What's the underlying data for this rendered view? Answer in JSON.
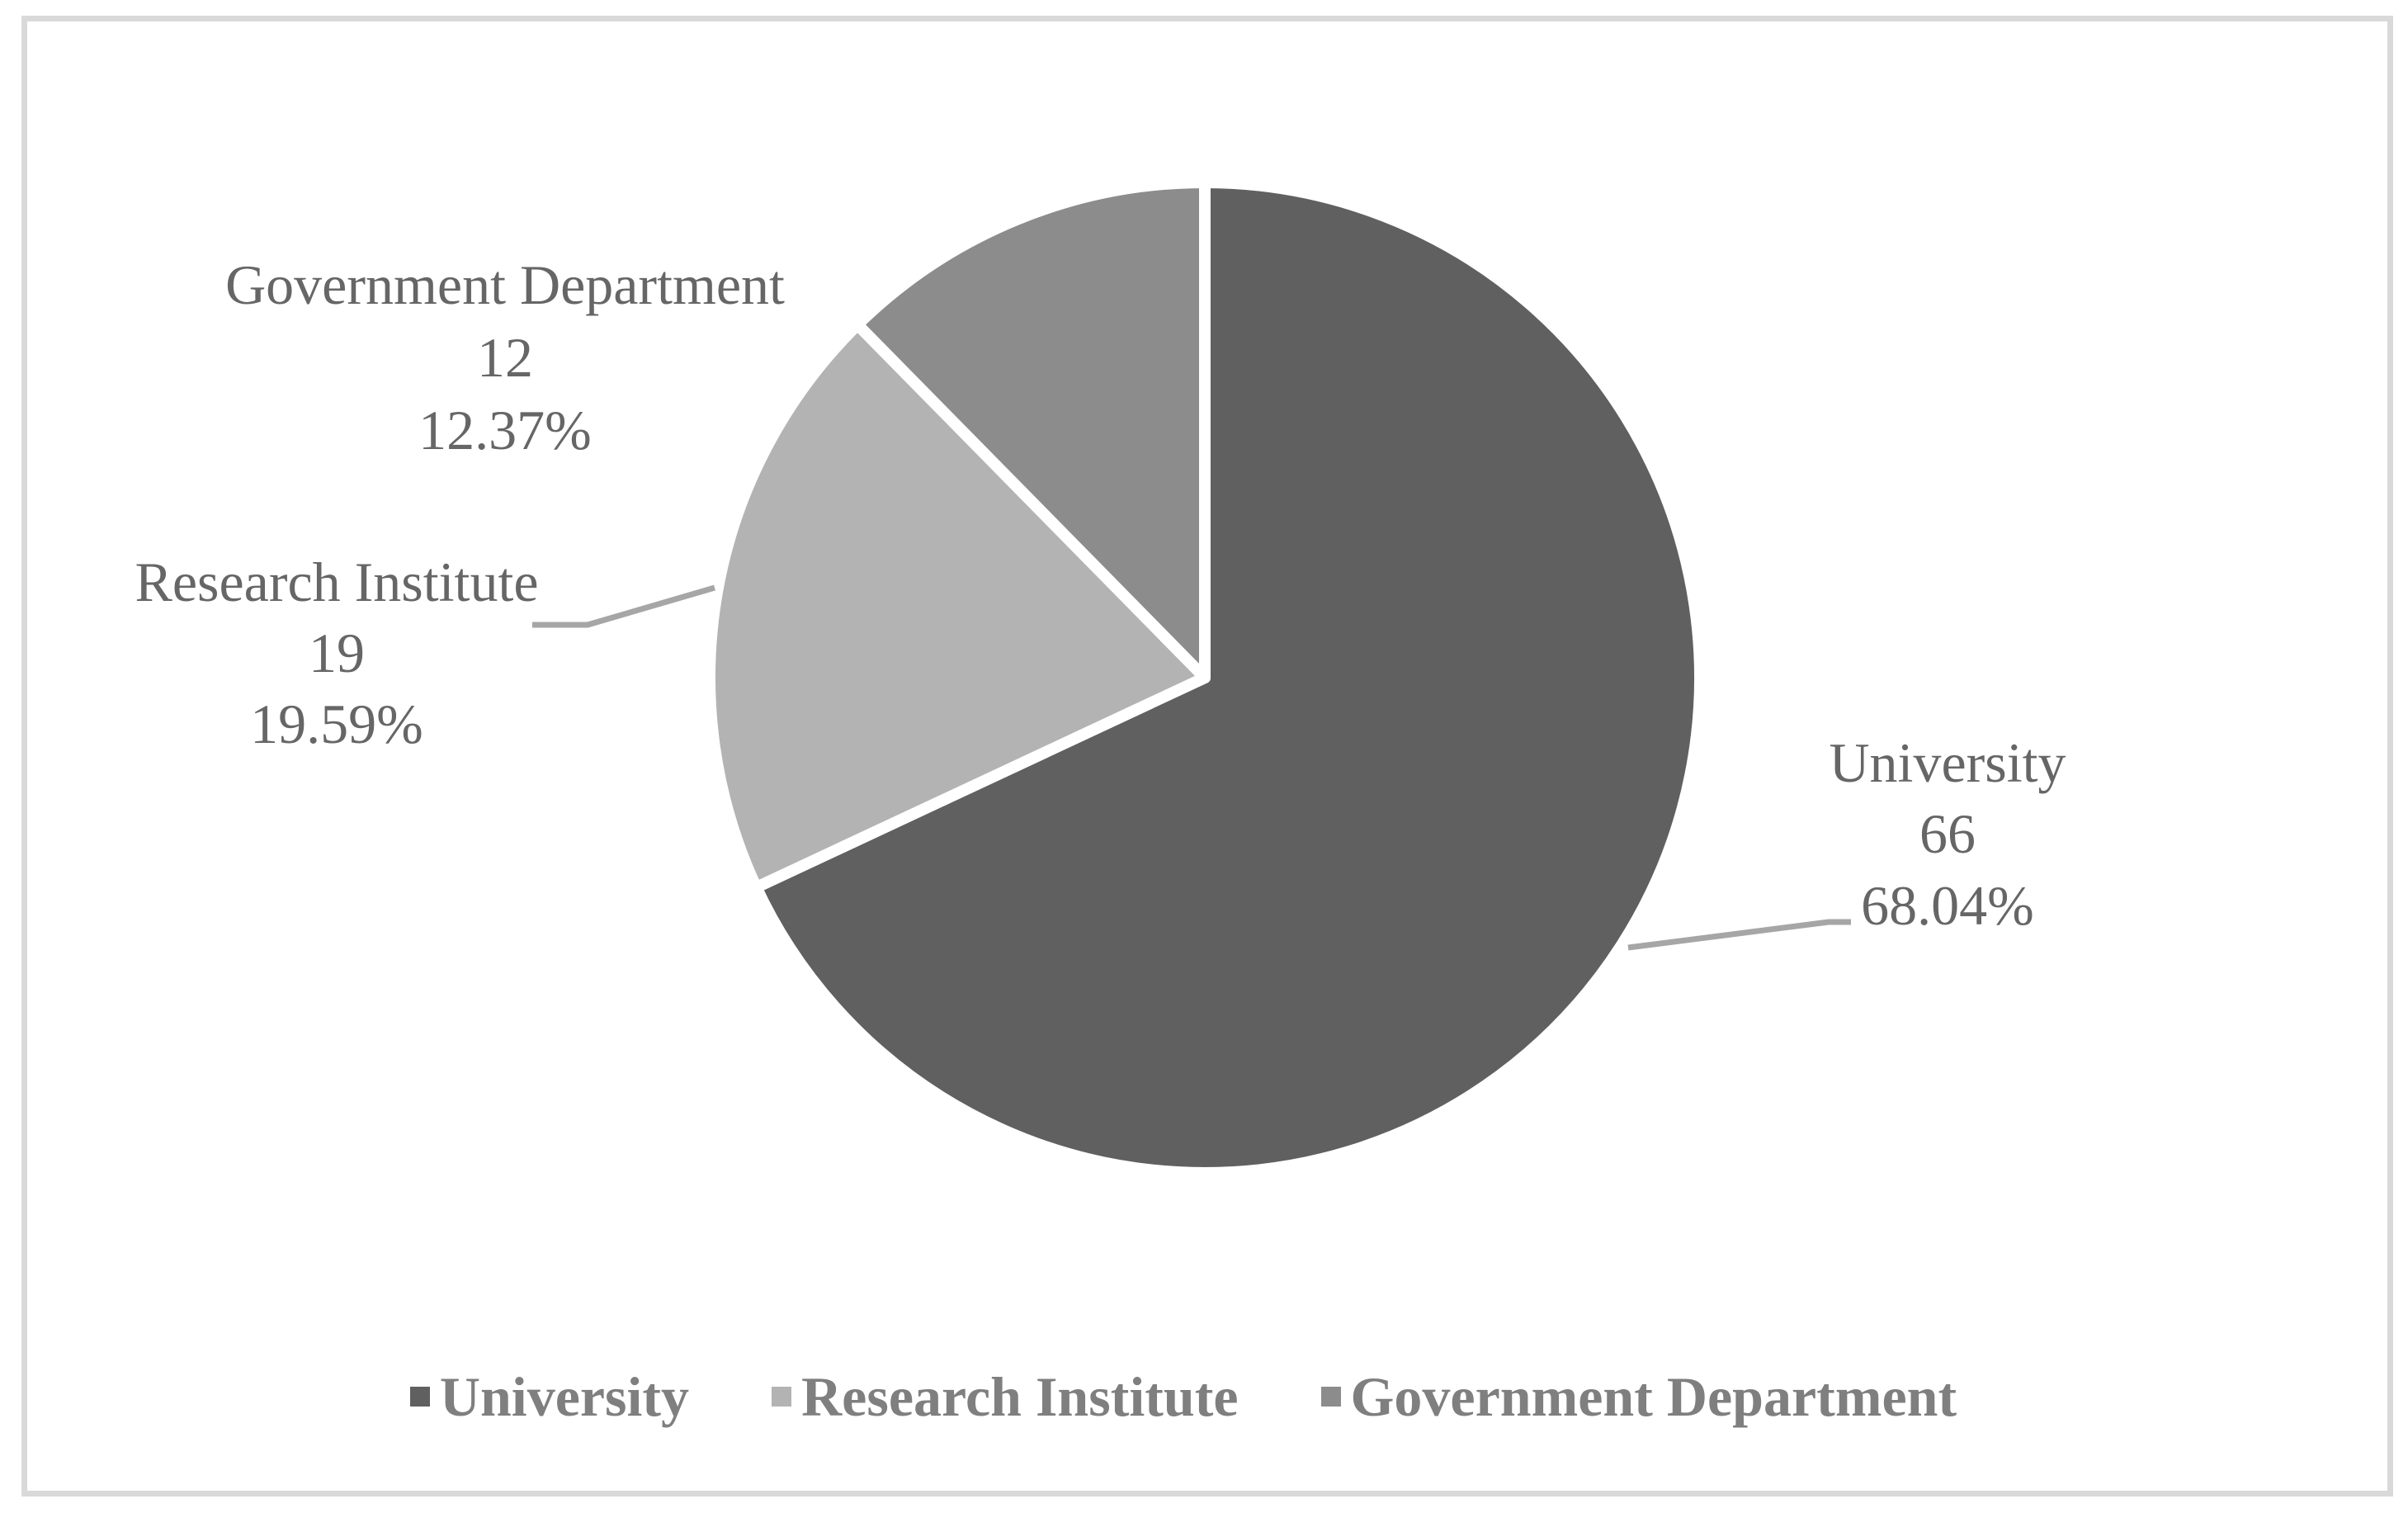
{
  "chart_data": {
    "type": "pie",
    "title": "",
    "categories": [
      "University",
      "Research Institute",
      "Government Department"
    ],
    "values": [
      66,
      19,
      12
    ],
    "percentages": [
      "68.04%",
      "19.59%",
      "12.37%"
    ],
    "colors": [
      "#606060",
      "#b3b3b3",
      "#8c8c8c"
    ],
    "start_angle": "12 o'clock, clockwise",
    "legend_position": "bottom",
    "data_labels": {
      "show_category": true,
      "show_value": true,
      "show_percentage": true
    }
  },
  "labels": [
    {
      "name": "Government Department",
      "value": "12",
      "percent": "12.37%"
    },
    {
      "name": "Research Institute",
      "value": "19",
      "percent": "19.59%"
    },
    {
      "name": "University",
      "value": "66",
      "percent": "68.04%"
    }
  ],
  "legend": [
    {
      "label": "University",
      "color": "#606060"
    },
    {
      "label": "Research Institute",
      "color": "#b3b3b3"
    },
    {
      "label": "Government Department",
      "color": "#8c8c8c"
    }
  ]
}
